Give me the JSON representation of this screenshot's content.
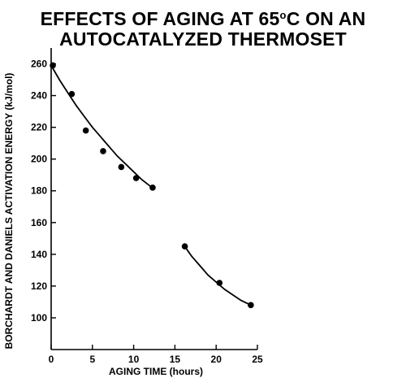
{
  "chart_data": {
    "type": "scatter",
    "title_line1_pre": "EFFECTS OF AGING AT 65",
    "title_line1_sup": "o",
    "title_line1_post": "C ON AN",
    "title_line2": "AUTOCATALYZED THERMOSET",
    "xlabel": "AGING TIME (hours)",
    "ylabel": "BORCHARDT AND DANIELS ACTIVATION ENERGY (kJ/mol)",
    "xlim": [
      0,
      25
    ],
    "ylim": [
      80,
      270
    ],
    "xticks": [
      0,
      5,
      10,
      15,
      20,
      25
    ],
    "yticks": [
      100,
      120,
      140,
      160,
      180,
      200,
      220,
      240,
      260
    ],
    "grid": false,
    "series": [
      {
        "points": [
          {
            "x": 0.2,
            "y": 259
          },
          {
            "x": 2.5,
            "y": 241
          },
          {
            "x": 4.2,
            "y": 218
          },
          {
            "x": 6.3,
            "y": 205
          },
          {
            "x": 8.5,
            "y": 195
          },
          {
            "x": 10.3,
            "y": 188
          },
          {
            "x": 12.3,
            "y": 182
          }
        ],
        "fit_curve": [
          {
            "x": 0,
            "y": 259
          },
          {
            "x": 1,
            "y": 250
          },
          {
            "x": 2,
            "y": 242
          },
          {
            "x": 3,
            "y": 234
          },
          {
            "x": 4,
            "y": 227
          },
          {
            "x": 5,
            "y": 220
          },
          {
            "x": 6,
            "y": 214
          },
          {
            "x": 7,
            "y": 208
          },
          {
            "x": 8,
            "y": 202
          },
          {
            "x": 9,
            "y": 197
          },
          {
            "x": 10,
            "y": 192
          },
          {
            "x": 11,
            "y": 187
          },
          {
            "x": 12,
            "y": 183
          },
          {
            "x": 12.3,
            "y": 182
          }
        ]
      },
      {
        "points": [
          {
            "x": 16.2,
            "y": 145
          },
          {
            "x": 20.4,
            "y": 122
          },
          {
            "x": 24.2,
            "y": 108
          }
        ],
        "fit_curve": [
          {
            "x": 16.2,
            "y": 145
          },
          {
            "x": 17,
            "y": 139
          },
          {
            "x": 18,
            "y": 133
          },
          {
            "x": 19,
            "y": 127
          },
          {
            "x": 20,
            "y": 122.5
          },
          {
            "x": 21,
            "y": 118
          },
          {
            "x": 22,
            "y": 114.5
          },
          {
            "x": 23,
            "y": 111
          },
          {
            "x": 24.2,
            "y": 108
          }
        ]
      }
    ]
  }
}
